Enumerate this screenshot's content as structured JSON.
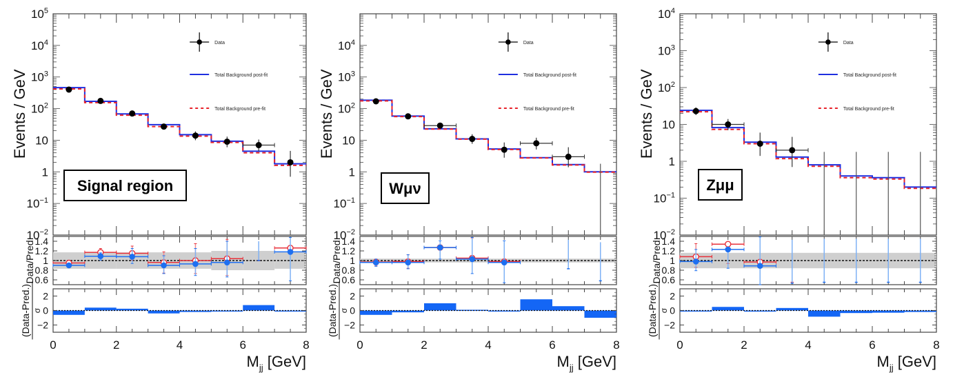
{
  "chart_data": [
    {
      "type": "line",
      "panel": "signal-region",
      "region_label": "Signal region",
      "ylabel": "Events / GeV",
      "xlabel_main": "M",
      "xlabel_sub": "jj",
      "xlabel_unit": " [GeV]",
      "xlim": [
        0,
        8
      ],
      "ylim_log": [
        -2,
        5
      ],
      "y_ticks_main": [
        {
          "exp": -2,
          "label": "10",
          "sup": "−2"
        },
        {
          "exp": -1,
          "label": "10",
          "sup": "−1"
        },
        {
          "exp": 0,
          "label": "1",
          "sup": ""
        },
        {
          "exp": 1,
          "label": "10",
          "sup": ""
        },
        {
          "exp": 2,
          "label": "10",
          "sup": "2"
        },
        {
          "exp": 3,
          "label": "10",
          "sup": "3"
        },
        {
          "exp": 4,
          "label": "10",
          "sup": "4"
        },
        {
          "exp": 5,
          "label": "10",
          "sup": "5"
        }
      ],
      "x_ticks": [
        "0",
        "2",
        "4",
        "6",
        "8"
      ],
      "bin_edges": [
        0,
        1,
        2,
        3,
        4,
        5,
        6,
        7,
        8
      ],
      "data": {
        "values": [
          400,
          175,
          70,
          27,
          14,
          9,
          7,
          2
        ],
        "err_up": [
          20,
          14,
          9,
          6,
          5,
          4,
          3.5,
          2.6
        ],
        "err_down": [
          20,
          13,
          8,
          5,
          4,
          3,
          2.5,
          1.3
        ],
        "show_xerr": [
          false,
          false,
          false,
          false,
          false,
          false,
          true,
          false
        ]
      },
      "postfit": [
        460,
        170,
        68,
        31,
        15,
        9.3,
        4.5,
        1.8
      ],
      "prefit": [
        420,
        155,
        62,
        27,
        13.5,
        8.5,
        4.0,
        1.6
      ],
      "ratio": {
        "ylabel": "Data/Pred.",
        "ylim": [
          0.5,
          1.5
        ],
        "y_ticks": [
          "0.6",
          "0.8",
          "1",
          "1.2",
          "1.4"
        ],
        "band": [
          0.17,
          0.17,
          0.17,
          0.17,
          0.17,
          0.2,
          0.2,
          0.17
        ],
        "postfit_points": [
          {
            "y": 0.9,
            "eu": 0.04,
            "ed": 0.04
          },
          {
            "y": 1.09,
            "eu": 0.07,
            "ed": 0.08
          },
          {
            "y": 1.08,
            "eu": 0.17,
            "ed": 0.14
          },
          {
            "y": 0.9,
            "eu": 0.2,
            "ed": 0.17
          },
          {
            "y": 0.93,
            "eu": 0.32,
            "ed": 0.24
          },
          {
            "y": 0.96,
            "eu": 0.44,
            "ed": 0.3
          },
          {
            "y": null,
            "eu": 0.4,
            "ed": 0.0,
            "mark_y": 1.0
          },
          {
            "y": 1.18,
            "eu": 0.3,
            "ed": 0.6
          }
        ],
        "prefit_points": [
          {
            "y": 0.95,
            "eu": 0.04,
            "ed": 0.04
          },
          {
            "y": 1.17,
            "eu": 0.08,
            "ed": 0.08
          },
          {
            "y": 1.15,
            "eu": 0.15,
            "ed": 0.14
          },
          {
            "y": 0.96,
            "eu": 0.22,
            "ed": 0.22
          },
          {
            "y": 1.0,
            "eu": 0.35,
            "ed": 0.27
          },
          {
            "y": 1.04,
            "eu": 0.4,
            "ed": 0.35
          },
          {
            "y": null,
            "eu": 0.08,
            "ed": 0.0,
            "mark_y": 1.0
          },
          {
            "y": 1.26,
            "eu": 0.0,
            "ed": 0.0
          }
        ]
      },
      "pull": {
        "ylabel_num": "(Data-Pred.)",
        "ylabel_den": "σ",
        "ylim": [
          -3,
          3
        ],
        "y_ticks": [
          "−2",
          "0",
          "2"
        ],
        "values": [
          -0.6,
          0.4,
          0.25,
          -0.4,
          -0.2,
          -0.1,
          0.75,
          0.0
        ]
      },
      "legend": [
        "Data",
        "Total Background post-fit",
        "Total Background pre-fit"
      ]
    },
    {
      "type": "line",
      "panel": "w-mu-nu",
      "region_label": "Wμν",
      "ylabel": "Events / GeV",
      "xlabel_main": "M",
      "xlabel_sub": "jj",
      "xlabel_unit": " [GeV]",
      "xlim": [
        0,
        8
      ],
      "ylim_log": [
        -2,
        5
      ],
      "y_ticks_main": [
        {
          "exp": -2,
          "label": "10",
          "sup": "−2"
        },
        {
          "exp": -1,
          "label": "10",
          "sup": "−1"
        },
        {
          "exp": 0,
          "label": "1",
          "sup": ""
        },
        {
          "exp": 1,
          "label": "10",
          "sup": ""
        },
        {
          "exp": 2,
          "label": "10",
          "sup": "2"
        },
        {
          "exp": 3,
          "label": "10",
          "sup": "3"
        },
        {
          "exp": 4,
          "label": "10",
          "sup": "4"
        }
      ],
      "x_ticks": [
        "0",
        "2",
        "4",
        "6",
        "8"
      ],
      "bin_edges": [
        0,
        1,
        2,
        3,
        4,
        5,
        6,
        7,
        8
      ],
      "data": {
        "values": [
          170,
          57,
          29,
          11,
          5,
          8,
          3,
          null
        ],
        "err_up": [
          14,
          8,
          6,
          4.5,
          3.5,
          4,
          3,
          1.8
        ],
        "err_down": [
          13,
          7,
          5,
          3.3,
          2.2,
          2.9,
          1.6,
          0
        ],
        "show_xerr": [
          false,
          false,
          true,
          false,
          false,
          true,
          true,
          false
        ]
      },
      "postfit": [
        185,
        58,
        23,
        11,
        5.3,
        2.8,
        1.7,
        1.0
      ],
      "prefit": [
        175,
        56,
        22.5,
        10.8,
        5.1,
        2.75,
        1.65,
        0.98
      ],
      "ratio": {
        "ylabel": "Data/Pred.",
        "ylim": [
          0.5,
          1.5
        ],
        "y_ticks": [
          "0.6",
          "0.8",
          "1",
          "1.2",
          "1.4"
        ],
        "band": [
          0.04,
          0.04,
          0.04,
          0.04,
          0.04,
          0.04,
          0.04,
          0.04
        ],
        "postfit_points": [
          {
            "y": 0.96,
            "eu": 0.07,
            "ed": 0.08
          },
          {
            "y": 0.96,
            "eu": 0.16,
            "ed": 0.13
          },
          {
            "y": 1.27,
            "eu": 0.14,
            "ed": 0.24
          },
          {
            "y": 1.03,
            "eu": 0.45,
            "ed": 0.3
          },
          {
            "y": 0.96,
            "eu": 0.45,
            "ed": 0.42
          },
          {
            "y": null,
            "eu": 0,
            "ed": 0
          },
          {
            "y": null,
            "eu": 0.6,
            "ed": 0.0,
            "mark_y": 0.83
          },
          {
            "y": null,
            "eu": 0.8,
            "ed": 0.0,
            "mark_y": 0.58
          }
        ],
        "prefit_points": [
          {
            "y": 0.97,
            "eu": 0.06,
            "ed": 0.08
          },
          {
            "y": 0.98,
            "eu": 0.14,
            "ed": 0.14
          },
          {
            "y": 1.27,
            "eu": 0.0,
            "ed": 0.0
          },
          {
            "y": 1.05,
            "eu": 0.42,
            "ed": 0.0
          },
          {
            "y": 0.98,
            "eu": 0.0,
            "ed": 0.0
          },
          {
            "y": null,
            "eu": 0,
            "ed": 0
          },
          {
            "y": null,
            "eu": 0,
            "ed": 0
          },
          {
            "y": null,
            "eu": 0,
            "ed": 0
          }
        ]
      },
      "pull": {
        "ylabel_num": "(Data-Pred.)",
        "ylabel_den": "σ",
        "ylim": [
          -3,
          3
        ],
        "y_ticks": [
          "−2",
          "0",
          "2"
        ],
        "values": [
          -0.6,
          -0.25,
          1.0,
          0.1,
          -0.05,
          1.55,
          0.6,
          -1.0
        ]
      },
      "legend": [
        "Data",
        "Total Background post-fit",
        "Total Background pre-fit"
      ]
    },
    {
      "type": "line",
      "panel": "z-mu-mu",
      "region_label": "Zμμ",
      "ylabel": "Events / GeV",
      "xlabel_main": "M",
      "xlabel_sub": "jj",
      "xlabel_unit": " [GeV]",
      "xlim": [
        0,
        8
      ],
      "ylim_log": [
        -2,
        4
      ],
      "y_ticks_main": [
        {
          "exp": -2,
          "label": "10",
          "sup": "−2"
        },
        {
          "exp": -1,
          "label": "10",
          "sup": "−1"
        },
        {
          "exp": 0,
          "label": "1",
          "sup": ""
        },
        {
          "exp": 1,
          "label": "10",
          "sup": ""
        },
        {
          "exp": 2,
          "label": "10",
          "sup": "2"
        },
        {
          "exp": 3,
          "label": "10",
          "sup": "3"
        },
        {
          "exp": 4,
          "label": "10",
          "sup": "4"
        }
      ],
      "x_ticks": [
        "0",
        "2",
        "4",
        "6",
        "8"
      ],
      "bin_edges": [
        0,
        1,
        2,
        3,
        4,
        5,
        6,
        7,
        8
      ],
      "data": {
        "values": [
          23,
          10,
          3,
          2,
          null,
          null,
          null,
          null
        ],
        "err_up": [
          6,
          4,
          3,
          2.6,
          1.8,
          1.8,
          1.8,
          1.8
        ],
        "err_down": [
          5,
          3,
          1.6,
          1.3,
          0,
          0,
          0,
          0
        ],
        "show_xerr": [
          false,
          true,
          false,
          true,
          false,
          false,
          false,
          false
        ]
      },
      "postfit": [
        24,
        8.2,
        3.3,
        1.3,
        0.8,
        0.4,
        0.36,
        0.2
      ],
      "prefit": [
        22,
        7.3,
        3.0,
        1.18,
        0.73,
        0.36,
        0.33,
        0.185
      ],
      "ratio": {
        "ylabel": "Data/Pred.",
        "ylim": [
          0.5,
          1.5
        ],
        "y_ticks": [
          "0.6",
          "0.8",
          "1",
          "1.2",
          "1.4"
        ],
        "band": [
          0.16,
          0.16,
          0.16,
          0.16,
          0.16,
          0.16,
          0.16,
          0.16
        ],
        "postfit_points": [
          {
            "y": 0.98,
            "eu": 0.25,
            "ed": 0.19
          },
          {
            "y": 1.23,
            "eu": 0.0,
            "ed": 0.39
          },
          {
            "y": 0.89,
            "eu": 0.6,
            "ed": 0.4
          },
          {
            "y": null,
            "eu": 0.9,
            "ed": 0.0,
            "mark_y": 0.53
          },
          {
            "y": null,
            "eu": 0.9,
            "ed": 0.0,
            "mark_y": 0.55
          },
          {
            "y": null,
            "eu": 0.9,
            "ed": 0.0,
            "mark_y": 0.55
          },
          {
            "y": null,
            "eu": 0.9,
            "ed": 0.0,
            "mark_y": 0.55
          },
          {
            "y": null,
            "eu": 0.9,
            "ed": 0.0,
            "mark_y": 0.55
          }
        ],
        "prefit_points": [
          {
            "y": 1.08,
            "eu": 0.27,
            "ed": 0.22
          },
          {
            "y": 1.34,
            "eu": 0.0,
            "ed": 0.4
          },
          {
            "y": 0.97,
            "eu": 0.0,
            "ed": 0.0
          },
          {
            "y": null,
            "eu": 0.05,
            "ed": 0.0,
            "mark_y": 0.55
          },
          {
            "y": null,
            "eu": 0,
            "ed": 0
          },
          {
            "y": null,
            "eu": 0,
            "ed": 0
          },
          {
            "y": null,
            "eu": 0,
            "ed": 0
          },
          {
            "y": null,
            "eu": 0,
            "ed": 0
          }
        ]
      },
      "pull": {
        "ylabel_num": "(Data-Pred.)",
        "ylabel_den": "σ",
        "ylim": [
          -3,
          3
        ],
        "y_ticks": [
          "−2",
          "0",
          "2"
        ],
        "values": [
          -0.05,
          0.5,
          -0.15,
          0.35,
          -0.85,
          -0.35,
          -0.3,
          -0.2
        ]
      },
      "legend": [
        "Data",
        "Total Background post-fit",
        "Total Background pre-fit"
      ]
    }
  ],
  "colors": {
    "postfit": "#1f2fe0",
    "prefit": "#e8222a",
    "ratio_post": "#1e6ff0",
    "ratio_post_err": "#7fb2f5",
    "ratio_pre": "#e8303a",
    "band": "#cfcfcf",
    "pull_fill": "#1466f5",
    "data": "#000000",
    "frame": "#444444"
  }
}
